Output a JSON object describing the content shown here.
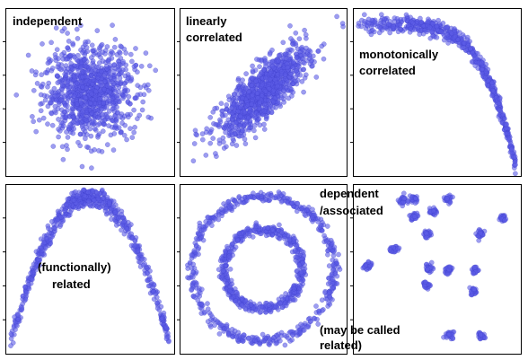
{
  "chart_data": [
    {
      "type": "scatter",
      "pattern": "independent",
      "annotation": [
        "independent"
      ],
      "x_range": [
        -3.5,
        3.5
      ],
      "y_range": [
        -3.5,
        3.5
      ],
      "point_count": 1000,
      "grid": false,
      "legend": "none"
    },
    {
      "type": "scatter",
      "pattern": "linear",
      "annotation": [
        "linearly",
        "correlated"
      ],
      "x_range": [
        -3.5,
        3.5
      ],
      "y_range": [
        -3.5,
        3.5
      ],
      "correlation": 0.8,
      "point_count": 1000,
      "grid": false,
      "legend": "none"
    },
    {
      "type": "scatter",
      "pattern": "monotonic",
      "annotation": [
        "monotonically",
        "correlated"
      ],
      "x_range": [
        0,
        1
      ],
      "y_range": [
        0,
        1
      ],
      "point_count": 600,
      "grid": false,
      "legend": "none"
    },
    {
      "type": "scatter",
      "pattern": "parabola",
      "annotation": [
        "(functionally)",
        "related"
      ],
      "x_range": [
        -1,
        1
      ],
      "y_range": [
        0,
        1
      ],
      "point_count": 600,
      "grid": false,
      "legend": "none"
    },
    {
      "type": "scatter",
      "pattern": "rings",
      "annotation": [
        "dependent",
        "/associated"
      ],
      "annotation_secondary": [
        "(may be called",
        "related)"
      ],
      "x_range": [
        -1.1,
        1.1
      ],
      "y_range": [
        -1.1,
        1.1
      ],
      "ring_radii": [
        1.0,
        0.55
      ],
      "point_count": 1000,
      "grid": false,
      "legend": "none"
    },
    {
      "type": "scatter",
      "pattern": "clusters",
      "annotation": [],
      "x_range": [
        0,
        1
      ],
      "y_range": [
        0,
        1
      ],
      "cluster_centers": [
        [
          0.28,
          0.93
        ],
        [
          0.35,
          0.94
        ],
        [
          0.57,
          0.94
        ],
        [
          0.36,
          0.83
        ],
        [
          0.48,
          0.86
        ],
        [
          0.92,
          0.82
        ],
        [
          0.44,
          0.72
        ],
        [
          0.23,
          0.62
        ],
        [
          0.78,
          0.72
        ],
        [
          0.06,
          0.52
        ],
        [
          0.45,
          0.5
        ],
        [
          0.57,
          0.49
        ],
        [
          0.74,
          0.49
        ],
        [
          0.43,
          0.4
        ],
        [
          0.73,
          0.36
        ],
        [
          0.58,
          0.09
        ],
        [
          0.78,
          0.08
        ]
      ],
      "points_per_cluster": 28,
      "grid": false,
      "legend": "none"
    }
  ],
  "colors": {
    "point_fill": "#5c5ce6",
    "point_stroke": "#3d3dcc",
    "frame": "#000000",
    "background": "#ffffff"
  }
}
